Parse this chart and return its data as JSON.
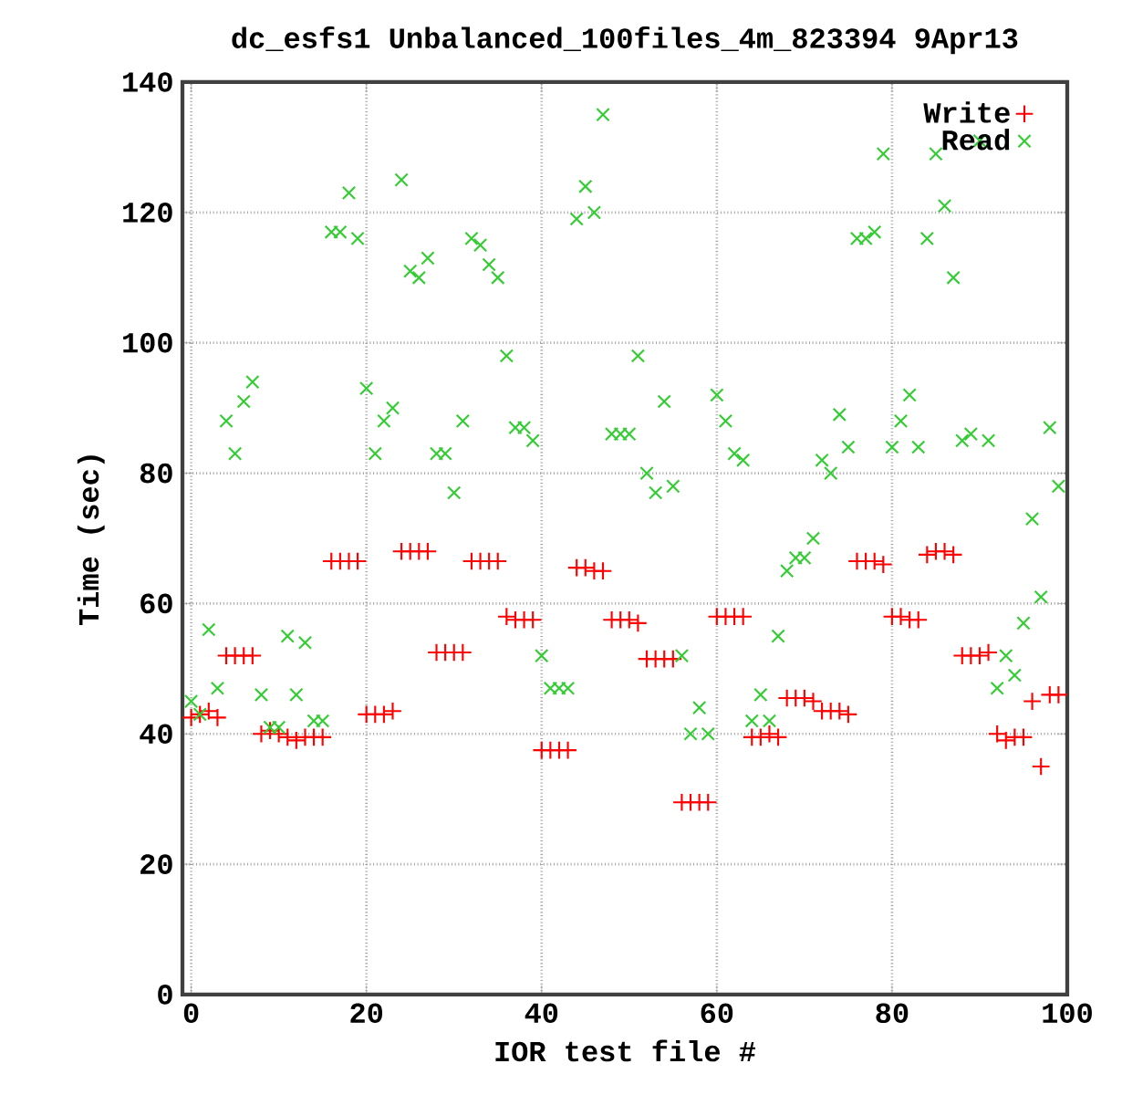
{
  "chart_data": {
    "type": "scatter",
    "title": "dc_esfs1 Unbalanced_100files_4m_823394 9Apr13",
    "xlabel": "IOR test file #",
    "ylabel": "Time (sec)",
    "x": [
      0,
      1,
      2,
      3,
      4,
      5,
      6,
      7,
      8,
      9,
      10,
      11,
      12,
      13,
      14,
      15,
      16,
      17,
      18,
      19,
      20,
      21,
      22,
      23,
      24,
      25,
      26,
      27,
      28,
      29,
      30,
      31,
      32,
      33,
      34,
      35,
      36,
      37,
      38,
      39,
      40,
      41,
      42,
      43,
      44,
      45,
      46,
      47,
      48,
      49,
      50,
      51,
      52,
      53,
      54,
      55,
      56,
      57,
      58,
      59,
      60,
      61,
      62,
      63,
      64,
      65,
      66,
      67,
      68,
      69,
      70,
      71,
      72,
      73,
      74,
      75,
      76,
      77,
      78,
      79,
      80,
      81,
      82,
      83,
      84,
      85,
      86,
      87,
      88,
      89,
      90,
      91,
      92,
      93,
      94,
      95,
      96,
      97,
      98,
      99
    ],
    "series": [
      {
        "name": "Write",
        "color": "#ff0000",
        "marker": "plus",
        "values": [
          42.5,
          43,
          43.5,
          42.5,
          52,
          52,
          52,
          52,
          40,
          40.5,
          40,
          39.5,
          39,
          39.5,
          39.5,
          39.5,
          66.5,
          66.5,
          66.5,
          66.5,
          43,
          43,
          43,
          43.5,
          68,
          68,
          68,
          68,
          52.5,
          52.5,
          52.5,
          52.5,
          66.5,
          66.5,
          66.5,
          66.5,
          58,
          57.5,
          57.5,
          57.5,
          37.5,
          37.5,
          37.5,
          37.5,
          65.5,
          65.5,
          65,
          65,
          57.5,
          57.5,
          57.5,
          57,
          51.5,
          51.5,
          51.5,
          51.5,
          29.5,
          29.5,
          29.5,
          29.5,
          58,
          58,
          58,
          58,
          39.5,
          39.5,
          40,
          39.5,
          45.5,
          45.5,
          45.5,
          45,
          43.5,
          43.5,
          43.5,
          43,
          66.5,
          66.5,
          66.5,
          66,
          58,
          58,
          57.5,
          57.5,
          67.5,
          68,
          68,
          67.5,
          52,
          52,
          52,
          52.5,
          40,
          39,
          39.5,
          39.5,
          45,
          35,
          46,
          46
        ]
      },
      {
        "name": "Read",
        "color": "#33cc33",
        "marker": "cross",
        "values": [
          45,
          43,
          56,
          47,
          88,
          83,
          91,
          94,
          46,
          41,
          41,
          55,
          46,
          54,
          42,
          42,
          117,
          117,
          123,
          116,
          93,
          83,
          88,
          90,
          125,
          111,
          110,
          113,
          83,
          83,
          77,
          88,
          116,
          115,
          112,
          110,
          98,
          87,
          87,
          85,
          52,
          47,
          47,
          47,
          119,
          124,
          120,
          135,
          86,
          86,
          86,
          98,
          80,
          77,
          91,
          78,
          52,
          40,
          44,
          40,
          92,
          88,
          83,
          82,
          42,
          46,
          42,
          55,
          65,
          67,
          67,
          70,
          82,
          80,
          89,
          84,
          116,
          116,
          117,
          129,
          84,
          88,
          92,
          84,
          116,
          129,
          121,
          110,
          85,
          86,
          131,
          85,
          47,
          52,
          49,
          57,
          73,
          61,
          87,
          78
        ]
      }
    ],
    "xlim": [
      -1,
      100
    ],
    "ylim": [
      0,
      140
    ],
    "xticks": [
      0,
      20,
      40,
      60,
      80,
      100
    ],
    "yticks": [
      0,
      20,
      40,
      60,
      80,
      100,
      120,
      140
    ],
    "grid": true,
    "legend": "top right"
  }
}
